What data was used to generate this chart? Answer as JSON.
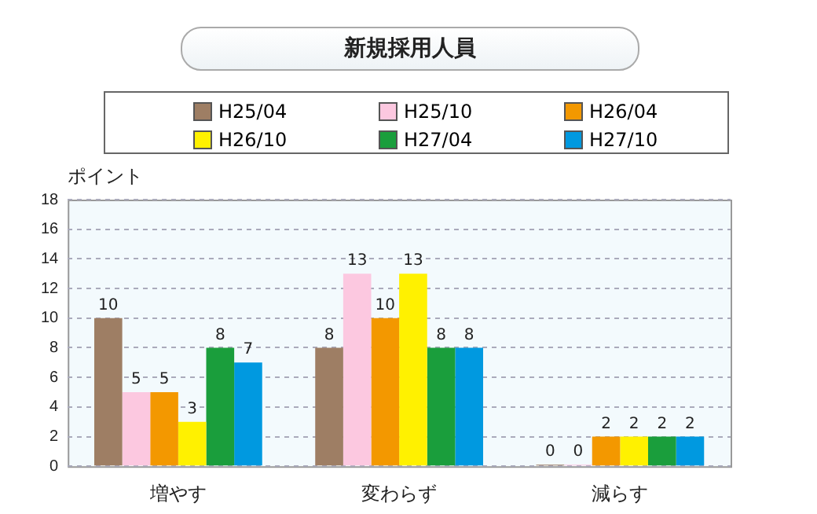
{
  "chart_data": {
    "type": "bar",
    "title": "新規採用人員",
    "ylabel": "ポイント",
    "categories": [
      "増やす",
      "変わらず",
      "減らす"
    ],
    "series": [
      {
        "name": "H25/04",
        "color": "#9e7e64",
        "values": [
          10,
          8,
          0
        ]
      },
      {
        "name": "H25/10",
        "color": "#fcc8e0",
        "values": [
          5,
          13,
          0
        ]
      },
      {
        "name": "H26/04",
        "color": "#f39800",
        "values": [
          5,
          10,
          2
        ]
      },
      {
        "name": "H26/10",
        "color": "#fff100",
        "values": [
          3,
          13,
          2
        ]
      },
      {
        "name": "H27/04",
        "color": "#1a9e3c",
        "values": [
          8,
          8,
          2
        ]
      },
      {
        "name": "H27/10",
        "color": "#0099e0",
        "values": [
          7,
          8,
          2
        ]
      }
    ],
    "ylim": [
      0,
      18
    ],
    "yticks": [
      0,
      2,
      4,
      6,
      8,
      10,
      12,
      14,
      16,
      18
    ],
    "grid": "y",
    "legend": "top",
    "data_labels": true
  }
}
